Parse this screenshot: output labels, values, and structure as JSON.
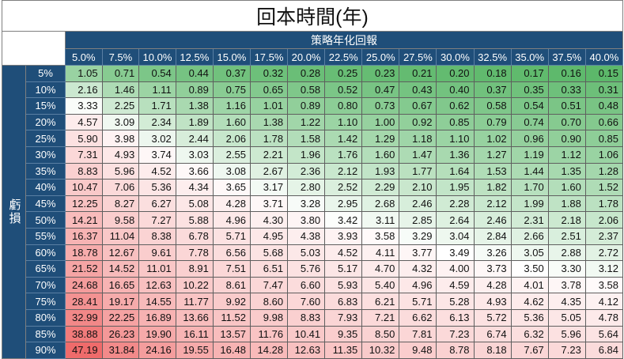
{
  "title": "回本時間(年)",
  "col_axis_label": "策略年化回報",
  "row_axis_label": "虧損",
  "columns": [
    "5.0%",
    "7.5%",
    "10.0%",
    "12.5%",
    "15.0%",
    "17.5%",
    "20.0%",
    "22.5%",
    "25.0%",
    "27.5%",
    "30.0%",
    "32.5%",
    "35.0%",
    "37.5%",
    "40.0%"
  ],
  "rows": [
    "5%",
    "10%",
    "15%",
    "20%",
    "25%",
    "30%",
    "35%",
    "40%",
    "45%",
    "50%",
    "55%",
    "60%",
    "65%",
    "70%",
    "75%",
    "80%",
    "85%",
    "90%"
  ],
  "values": [
    [
      "1.05",
      "0.71",
      "0.54",
      "0.44",
      "0.37",
      "0.32",
      "0.28",
      "0.25",
      "0.23",
      "0.21",
      "0.20",
      "0.18",
      "0.17",
      "0.16",
      "0.15"
    ],
    [
      "2.16",
      "1.46",
      "1.11",
      "0.89",
      "0.75",
      "0.65",
      "0.58",
      "0.52",
      "0.47",
      "0.43",
      "0.40",
      "0.37",
      "0.35",
      "0.33",
      "0.31"
    ],
    [
      "3.33",
      "2.25",
      "1.71",
      "1.38",
      "1.16",
      "1.01",
      "0.89",
      "0.80",
      "0.73",
      "0.67",
      "0.62",
      "0.58",
      "0.54",
      "0.51",
      "0.48"
    ],
    [
      "4.57",
      "3.09",
      "2.34",
      "1.89",
      "1.60",
      "1.38",
      "1.22",
      "1.10",
      "1.00",
      "0.92",
      "0.85",
      "0.79",
      "0.74",
      "0.70",
      "0.66"
    ],
    [
      "5.90",
      "3.98",
      "3.02",
      "2.44",
      "2.06",
      "1.78",
      "1.58",
      "1.42",
      "1.29",
      "1.18",
      "1.10",
      "1.02",
      "0.96",
      "0.90",
      "0.85"
    ],
    [
      "7.31",
      "4.93",
      "3.74",
      "3.03",
      "2.55",
      "2.21",
      "1.96",
      "1.76",
      "1.60",
      "1.47",
      "1.36",
      "1.27",
      "1.19",
      "1.12",
      "1.06"
    ],
    [
      "8.83",
      "5.96",
      "4.52",
      "3.66",
      "3.08",
      "2.67",
      "2.36",
      "2.12",
      "1.93",
      "1.77",
      "1.64",
      "1.53",
      "1.44",
      "1.35",
      "1.28"
    ],
    [
      "10.47",
      "7.06",
      "5.36",
      "4.34",
      "3.65",
      "3.17",
      "2.80",
      "2.52",
      "2.29",
      "2.10",
      "1.95",
      "1.82",
      "1.70",
      "1.60",
      "1.52"
    ],
    [
      "12.25",
      "8.27",
      "6.27",
      "5.08",
      "4.28",
      "3.71",
      "3.28",
      "2.95",
      "2.68",
      "2.46",
      "2.28",
      "2.12",
      "1.99",
      "1.88",
      "1.78"
    ],
    [
      "14.21",
      "9.58",
      "7.27",
      "5.88",
      "4.96",
      "4.30",
      "3.80",
      "3.42",
      "3.11",
      "2.85",
      "2.64",
      "2.46",
      "2.31",
      "2.18",
      "2.06"
    ],
    [
      "16.37",
      "11.04",
      "8.38",
      "6.78",
      "5.71",
      "4.95",
      "4.38",
      "3.93",
      "3.58",
      "3.29",
      "3.04",
      "2.84",
      "2.66",
      "2.51",
      "2.37"
    ],
    [
      "18.78",
      "12.67",
      "9.61",
      "7.78",
      "6.56",
      "5.68",
      "5.03",
      "4.52",
      "4.11",
      "3.77",
      "3.49",
      "3.26",
      "3.05",
      "2.88",
      "2.72"
    ],
    [
      "21.52",
      "14.52",
      "11.01",
      "8.91",
      "7.51",
      "6.51",
      "5.76",
      "5.17",
      "4.70",
      "4.32",
      "4.00",
      "3.73",
      "3.50",
      "3.30",
      "3.12"
    ],
    [
      "24.68",
      "16.65",
      "12.63",
      "10.22",
      "8.61",
      "7.47",
      "6.60",
      "5.93",
      "5.40",
      "4.96",
      "4.59",
      "4.28",
      "4.01",
      "3.78",
      "3.58"
    ],
    [
      "28.41",
      "19.17",
      "14.55",
      "11.77",
      "9.92",
      "8.60",
      "7.60",
      "6.83",
      "6.21",
      "5.71",
      "5.28",
      "4.93",
      "4.62",
      "4.35",
      "4.12"
    ],
    [
      "32.99",
      "22.25",
      "16.89",
      "13.66",
      "11.52",
      "9.98",
      "8.83",
      "7.93",
      "7.21",
      "6.62",
      "6.13",
      "5.72",
      "5.36",
      "5.05",
      "4.78"
    ],
    [
      "38.88",
      "26.23",
      "19.90",
      "16.11",
      "13.57",
      "11.76",
      "10.41",
      "9.35",
      "8.50",
      "7.81",
      "7.23",
      "6.74",
      "6.32",
      "5.96",
      "5.64"
    ],
    [
      "47.19",
      "31.84",
      "24.16",
      "19.55",
      "16.48",
      "14.28",
      "12.63",
      "11.35",
      "10.32",
      "9.48",
      "8.78",
      "8.18",
      "7.67",
      "7.23",
      "6.84"
    ]
  ],
  "colors": {
    "header_bg": "#1f4e79",
    "header_text": "#ffffff",
    "scale_low": "#5cb86a",
    "scale_mid": "#ffffff",
    "scale_high": "#ef6b6b"
  }
}
